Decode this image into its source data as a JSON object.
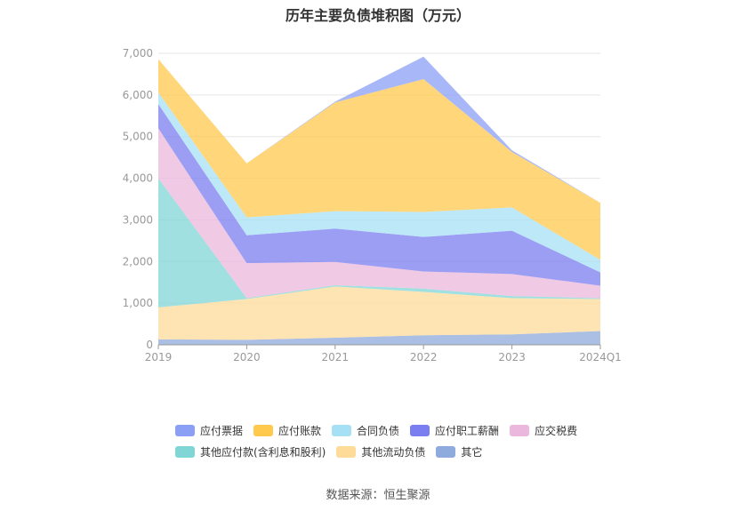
{
  "chart_data": {
    "type": "area",
    "title": "历年主要负债堆积图（万元）",
    "categories": [
      "2019",
      "2020",
      "2021",
      "2022",
      "2023",
      "2024Q1"
    ],
    "ylim": [
      0,
      7000
    ],
    "yticks": [
      "0",
      "1,000",
      "2,000",
      "3,000",
      "4,000",
      "5,000",
      "6,000",
      "7,000"
    ],
    "grid": true,
    "legend_position": "bottom",
    "series": [
      {
        "name": "其它",
        "color": "#8faadc",
        "values": [
          130,
          120,
          170,
          230,
          250,
          330
        ]
      },
      {
        "name": "其他流动负债",
        "color": "#ffdb9a",
        "values": [
          770,
          980,
          1230,
          1040,
          870,
          770
        ]
      },
      {
        "name": "其他应付款(含利息和股利)",
        "color": "#80d5d5",
        "values": [
          3100,
          20,
          30,
          80,
          50,
          20
        ]
      },
      {
        "name": "应交税费",
        "color": "#ebb7dc",
        "values": [
          1200,
          840,
          560,
          410,
          530,
          300
        ]
      },
      {
        "name": "应付职工薪酬",
        "color": "#7b7ef0",
        "values": [
          580,
          670,
          800,
          830,
          1040,
          320
        ]
      },
      {
        "name": "合同负债",
        "color": "#a6e0f5",
        "values": [
          280,
          430,
          420,
          600,
          560,
          300
        ]
      },
      {
        "name": "应付账款",
        "color": "#ffc94d",
        "values": [
          800,
          1300,
          2610,
          3190,
          1330,
          1370
        ]
      },
      {
        "name": "应付票据",
        "color": "#8b9ff5",
        "values": [
          0,
          0,
          20,
          540,
          40,
          0
        ]
      }
    ],
    "source": "数据来源：恒生聚源"
  },
  "legend_rows": [
    [
      "应付票据",
      "应付账款",
      "合同负债",
      "应付职工薪酬",
      "应交税费"
    ],
    [
      "其他应付款(含利息和股利)",
      "其他流动负债",
      "其它"
    ]
  ]
}
